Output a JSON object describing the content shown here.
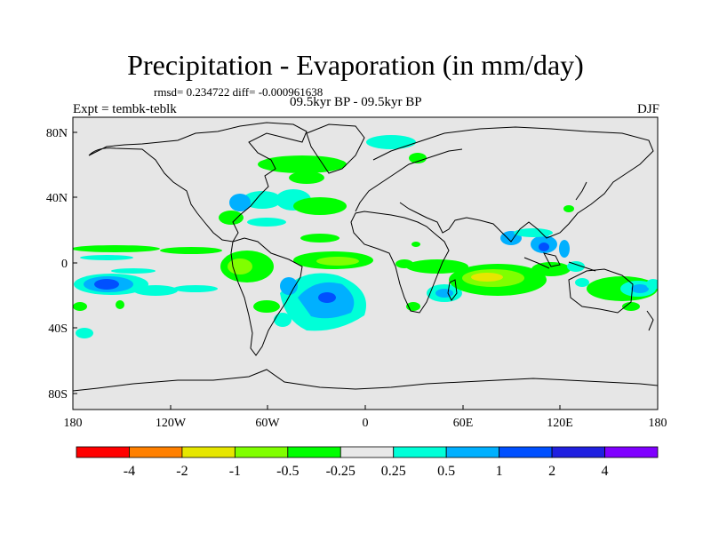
{
  "header": {
    "title": "Precipitation - Evaporation (in mm/day)",
    "stats": "rmsd= 0.234722 diff= -0.000961638",
    "subtitle": "09.5kyr BP - 09.5kyr BP",
    "experiment": "Expt = tembk-teblk",
    "season": "DJF"
  },
  "axes": {
    "lat_labels": [
      "80N",
      "40N",
      "0",
      "40S",
      "80S"
    ],
    "lon_labels": [
      "180",
      "120W",
      "60W",
      "0",
      "60E",
      "120E",
      "180"
    ]
  },
  "colorbar": {
    "colors": [
      "#ff0000",
      "#ff8000",
      "#e6e600",
      "#80ff00",
      "#00ff00",
      "#e8e8e8",
      "#00ffd8",
      "#00b0ff",
      "#0050ff",
      "#2020e0",
      "#8000ff"
    ],
    "labels": [
      "-4",
      "-2",
      "-1",
      "-0.5",
      "-0.25",
      "0.25",
      "0.5",
      "1",
      "2",
      "4"
    ]
  },
  "colors": {
    "ocean_background": "#e6e6e6",
    "coastline": "#000000"
  }
}
